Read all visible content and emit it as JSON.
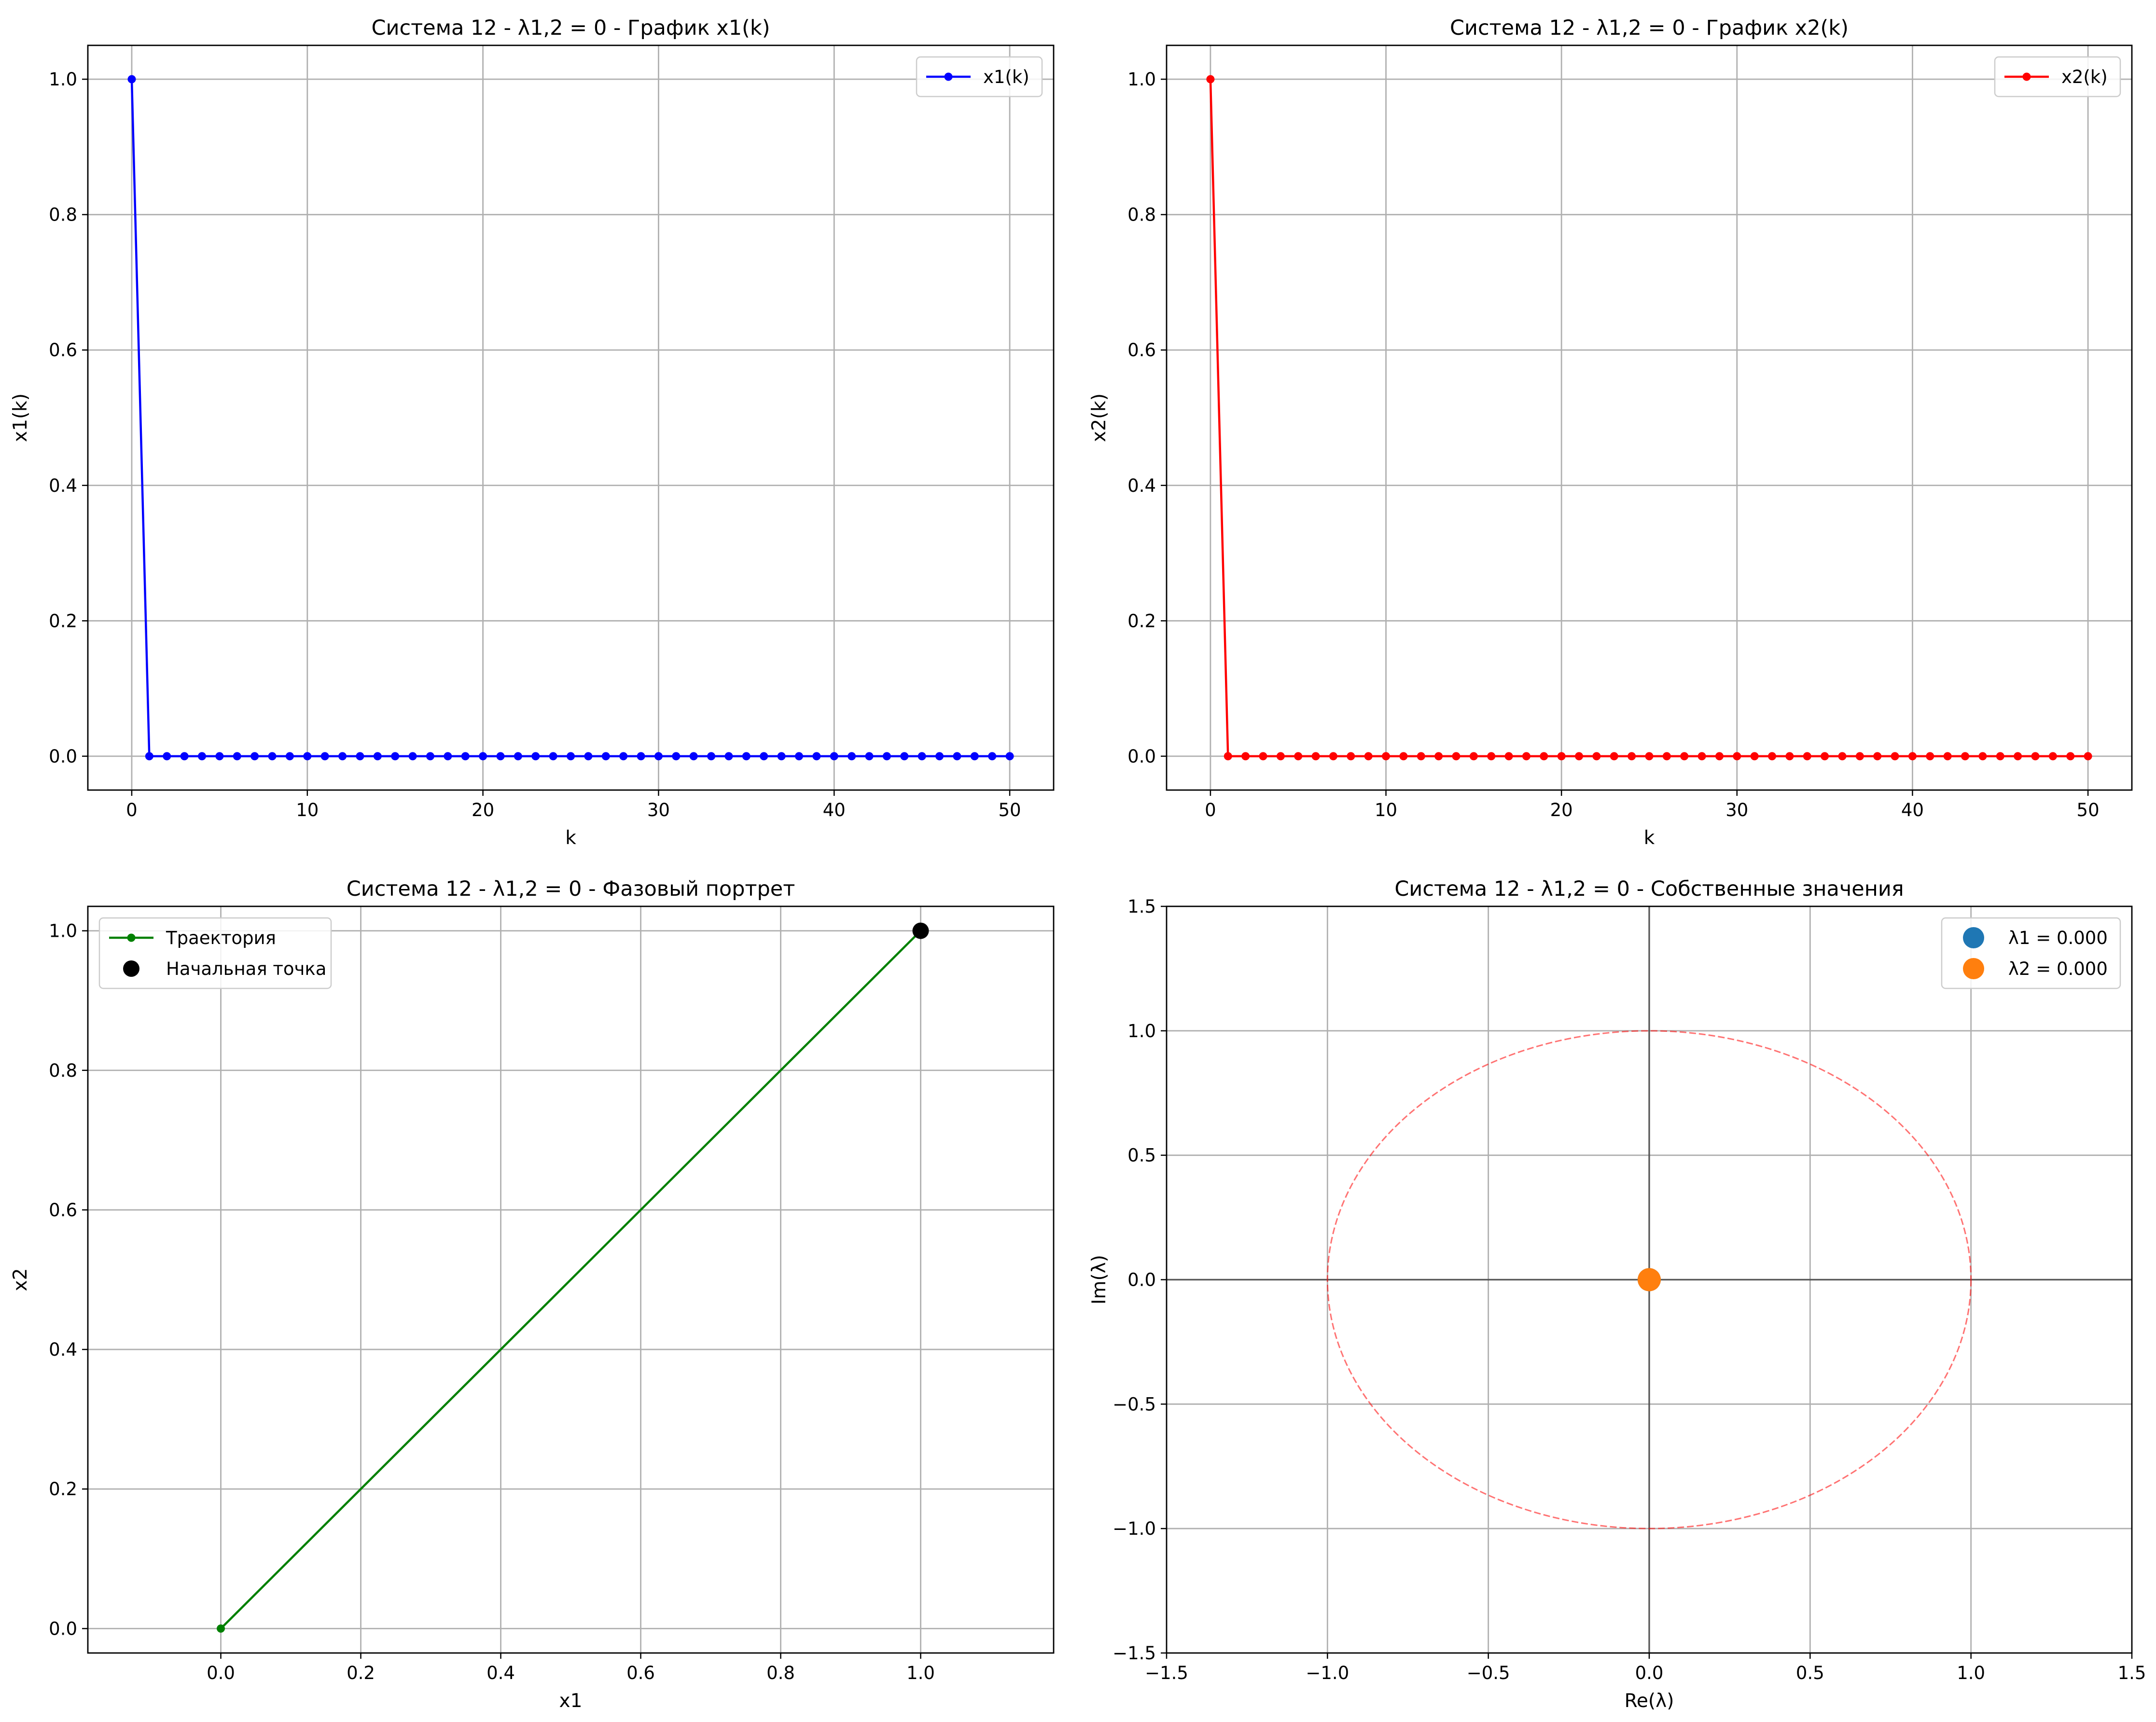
{
  "chart_data": [
    {
      "type": "line",
      "title": "Система 12 - λ1,2 = 0 - График x1(k)",
      "xlabel": "k",
      "ylabel": "x1(k)",
      "xlim": [
        -2.5,
        52.5
      ],
      "ylim": [
        -0.05,
        1.05
      ],
      "xticks": [
        0,
        10,
        20,
        30,
        40,
        50
      ],
      "yticks": [
        0.0,
        0.2,
        0.4,
        0.6,
        0.8,
        1.0
      ],
      "grid": true,
      "legend_position": "top-right",
      "series": [
        {
          "name": "x1(k)",
          "color": "#0000ff",
          "marker": "circle",
          "x": [
            0,
            1,
            2,
            3,
            4,
            5,
            6,
            7,
            8,
            9,
            10,
            11,
            12,
            13,
            14,
            15,
            16,
            17,
            18,
            19,
            20,
            21,
            22,
            23,
            24,
            25,
            26,
            27,
            28,
            29,
            30,
            31,
            32,
            33,
            34,
            35,
            36,
            37,
            38,
            39,
            40,
            41,
            42,
            43,
            44,
            45,
            46,
            47,
            48,
            49,
            50
          ],
          "y": [
            1,
            0,
            0,
            0,
            0,
            0,
            0,
            0,
            0,
            0,
            0,
            0,
            0,
            0,
            0,
            0,
            0,
            0,
            0,
            0,
            0,
            0,
            0,
            0,
            0,
            0,
            0,
            0,
            0,
            0,
            0,
            0,
            0,
            0,
            0,
            0,
            0,
            0,
            0,
            0,
            0,
            0,
            0,
            0,
            0,
            0,
            0,
            0,
            0,
            0,
            0
          ]
        }
      ]
    },
    {
      "type": "line",
      "title": "Система 12 - λ1,2 = 0 - График x2(k)",
      "xlabel": "k",
      "ylabel": "x2(k)",
      "xlim": [
        -2.5,
        52.5
      ],
      "ylim": [
        -0.05,
        1.05
      ],
      "xticks": [
        0,
        10,
        20,
        30,
        40,
        50
      ],
      "yticks": [
        0.0,
        0.2,
        0.4,
        0.6,
        0.8,
        1.0
      ],
      "grid": true,
      "legend_position": "top-right",
      "series": [
        {
          "name": "x2(k)",
          "color": "#ff0000",
          "marker": "circle",
          "x": [
            0,
            1,
            2,
            3,
            4,
            5,
            6,
            7,
            8,
            9,
            10,
            11,
            12,
            13,
            14,
            15,
            16,
            17,
            18,
            19,
            20,
            21,
            22,
            23,
            24,
            25,
            26,
            27,
            28,
            29,
            30,
            31,
            32,
            33,
            34,
            35,
            36,
            37,
            38,
            39,
            40,
            41,
            42,
            43,
            44,
            45,
            46,
            47,
            48,
            49,
            50
          ],
          "y": [
            1,
            0,
            0,
            0,
            0,
            0,
            0,
            0,
            0,
            0,
            0,
            0,
            0,
            0,
            0,
            0,
            0,
            0,
            0,
            0,
            0,
            0,
            0,
            0,
            0,
            0,
            0,
            0,
            0,
            0,
            0,
            0,
            0,
            0,
            0,
            0,
            0,
            0,
            0,
            0,
            0,
            0,
            0,
            0,
            0,
            0,
            0,
            0,
            0,
            0,
            0
          ]
        }
      ]
    },
    {
      "type": "line",
      "title": "Система 12 - λ1,2 = 0 - Фазовый портрет",
      "xlabel": "x1",
      "ylabel": "x2",
      "xlim": [
        -0.19,
        1.19
      ],
      "ylim": [
        -0.035,
        1.035
      ],
      "xticks": [
        0.0,
        0.2,
        0.4,
        0.6,
        0.8,
        1.0
      ],
      "yticks": [
        0.0,
        0.2,
        0.4,
        0.6,
        0.8,
        1.0
      ],
      "grid": true,
      "legend_position": "top-left",
      "series": [
        {
          "name": "Траектория",
          "color": "#008000",
          "marker": "circle",
          "x": [
            1,
            0
          ],
          "y": [
            1,
            0
          ]
        },
        {
          "name": "Начальная точка",
          "color": "#000000",
          "marker": "large-circle",
          "x": [
            1
          ],
          "y": [
            1
          ]
        }
      ]
    },
    {
      "type": "scatter",
      "title": "Система 12 - λ1,2 = 0 - Собственные значения",
      "xlabel": "Re(λ)",
      "ylabel": "Im(λ)",
      "xlim": [
        -1.5,
        1.5
      ],
      "ylim": [
        -1.5,
        1.5
      ],
      "xticks": [
        -1.5,
        -1.0,
        -0.5,
        0.0,
        0.5,
        1.0,
        1.5
      ],
      "yticks": [
        -1.5,
        -1.0,
        -0.5,
        0.0,
        0.5,
        1.0,
        1.5
      ],
      "grid": true,
      "legend_position": "top-right",
      "unit_circle": {
        "radius": 1,
        "color": "#ff0000",
        "style": "dashed"
      },
      "series": [
        {
          "name": "λ1 = 0.000",
          "color": "#1f77b4",
          "x": [
            0.0
          ],
          "y": [
            0.0
          ]
        },
        {
          "name": "λ2 = 0.000",
          "color": "#ff7f0e",
          "x": [
            0.0
          ],
          "y": [
            0.0
          ]
        }
      ]
    }
  ]
}
